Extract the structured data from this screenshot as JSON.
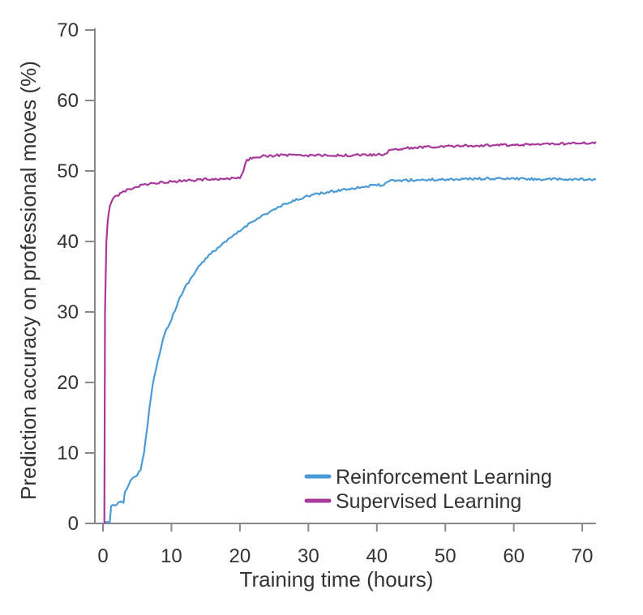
{
  "chart_data": {
    "type": "line",
    "title": "",
    "xlabel": "Training time (hours)",
    "ylabel": "Prediction accuracy on professional moves (%)",
    "xlim": [
      0,
      72
    ],
    "ylim": [
      0,
      70
    ],
    "xticks": [
      0,
      10,
      20,
      30,
      40,
      50,
      60,
      70
    ],
    "yticks": [
      0,
      10,
      20,
      30,
      40,
      50,
      60,
      70
    ],
    "grid": false,
    "legend_position": "bottom-right",
    "series": [
      {
        "name": "Reinforcement Learning",
        "color": "#4a9ad6",
        "x": [
          0.2,
          1.0,
          1.2,
          1.5,
          2.0,
          3.0,
          3.2,
          4.0,
          5.0,
          5.5,
          6.0,
          6.5,
          7.0,
          7.5,
          8.0,
          9.0,
          10.0,
          11.0,
          12.0,
          13.0,
          14.0,
          15.0,
          16.0,
          18.0,
          20.0,
          22.0,
          24.0,
          26.0,
          28.0,
          30.0,
          33.0,
          36.0,
          40.0,
          41.0,
          42.0,
          45.0,
          50.0,
          55.0,
          60.0,
          65.0,
          70.0,
          72.0
        ],
        "y": [
          0.2,
          0.2,
          2.5,
          2.5,
          2.8,
          3.0,
          4.5,
          6.0,
          7.0,
          7.5,
          10.0,
          14.0,
          18.0,
          21.0,
          23.0,
          27.0,
          29.0,
          31.5,
          33.5,
          35.0,
          36.5,
          37.5,
          38.5,
          40.0,
          41.5,
          43.0,
          44.0,
          45.0,
          45.8,
          46.5,
          47.0,
          47.5,
          48.0,
          48.0,
          48.6,
          48.7,
          48.8,
          48.9,
          48.9,
          48.8,
          48.8,
          48.7
        ]
      },
      {
        "name": "Supervised Learning",
        "color": "#a8399a",
        "x": [
          0.2,
          0.3,
          0.5,
          0.7,
          1.0,
          1.5,
          2.0,
          3.0,
          4.0,
          5.0,
          7.0,
          10.0,
          15.0,
          20.0,
          20.5,
          21.0,
          22.0,
          25.0,
          30.0,
          35.0,
          40.0,
          41.0,
          42.0,
          45.0,
          50.0,
          55.0,
          60.0,
          65.0,
          70.0,
          72.0
        ],
        "y": [
          0.0,
          30.0,
          40.0,
          43.0,
          45.0,
          46.0,
          46.5,
          47.0,
          47.5,
          47.8,
          48.2,
          48.5,
          48.8,
          49.0,
          50.0,
          51.5,
          52.0,
          52.2,
          52.2,
          52.2,
          52.3,
          52.3,
          53.0,
          53.3,
          53.5,
          53.6,
          53.7,
          53.8,
          53.9,
          54.0
        ]
      }
    ]
  }
}
